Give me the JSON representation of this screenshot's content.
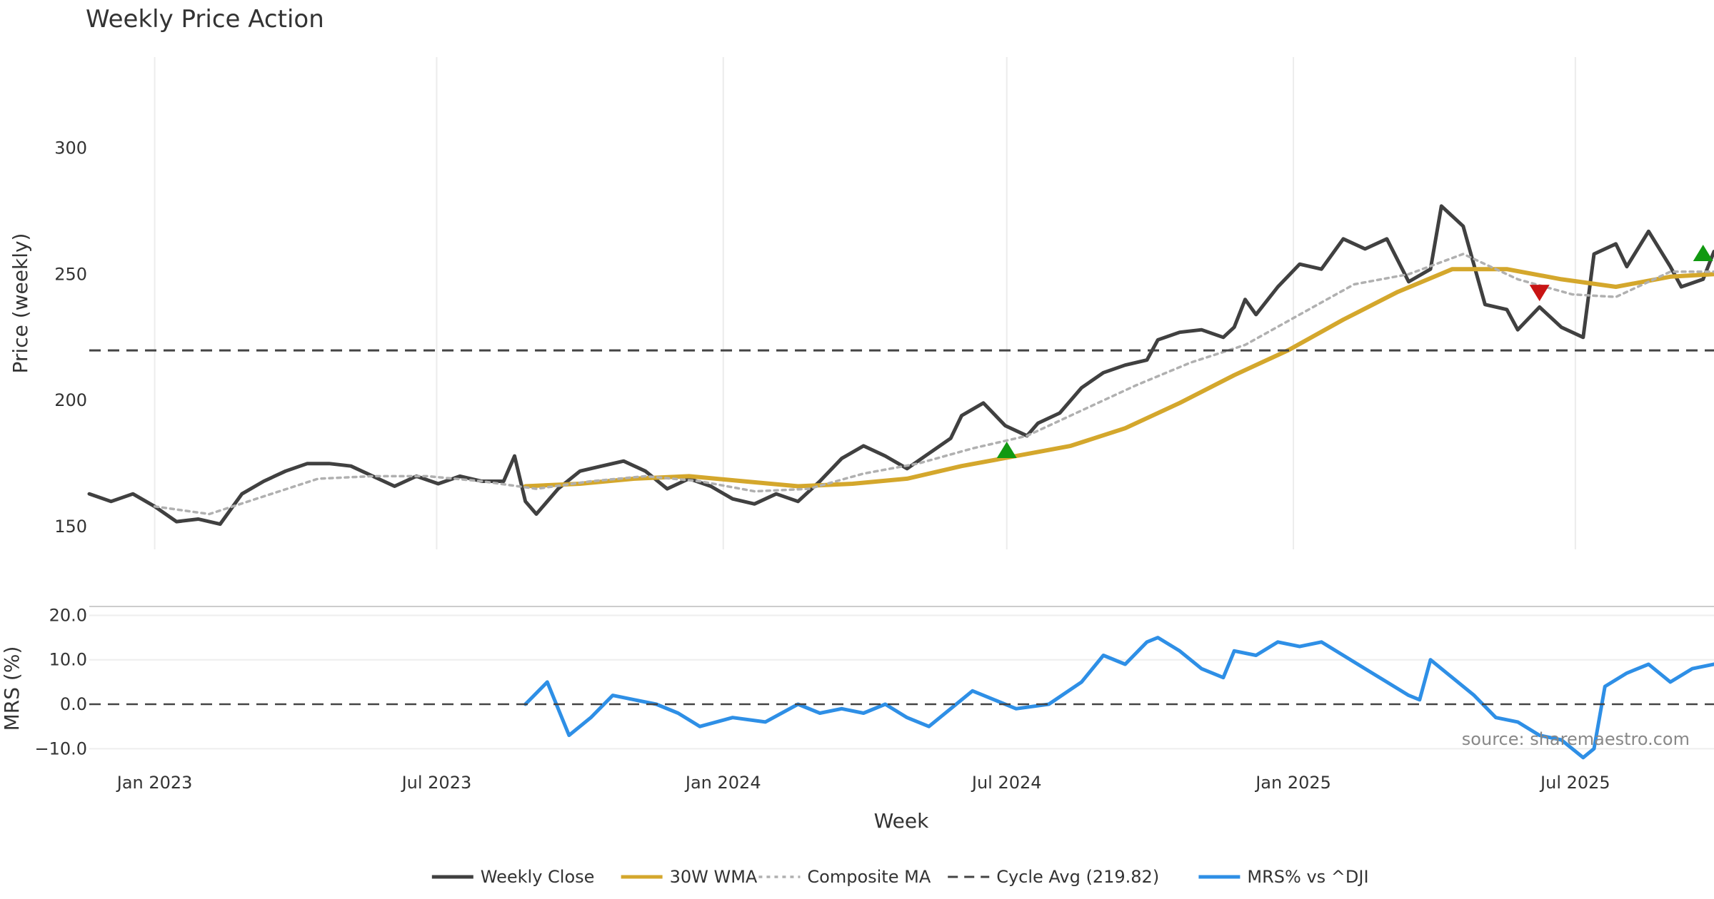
{
  "chart_data": [
    {
      "type": "line",
      "title": "Weekly Price Action",
      "ylabel": "Price (weekly)",
      "xlabel": "Week",
      "x_range": [
        "2022-11-20",
        "2025-09-28"
      ],
      "ylim": [
        141,
        336
      ],
      "yticks": [
        150,
        200,
        250,
        300
      ],
      "xticks": [
        {
          "date": "2023-01-01",
          "label": "Jan 2023"
        },
        {
          "date": "2023-07-01",
          "label": "Jul 2023"
        },
        {
          "date": "2024-01-01",
          "label": "Jan 2024"
        },
        {
          "date": "2024-07-01",
          "label": "Jul 2024"
        },
        {
          "date": "2025-01-01",
          "label": "Jan 2025"
        },
        {
          "date": "2025-07-01",
          "label": "Jul 2025"
        }
      ],
      "series": [
        {
          "name": "Weekly Close",
          "color": "#404040",
          "points": [
            [
              "2022-11-20",
              163
            ],
            [
              "2022-12-04",
              160
            ],
            [
              "2022-12-18",
              163
            ],
            [
              "2023-01-01",
              158
            ],
            [
              "2023-01-15",
              152
            ],
            [
              "2023-01-29",
              153
            ],
            [
              "2023-02-12",
              151
            ],
            [
              "2023-02-26",
              163
            ],
            [
              "2023-03-12",
              168
            ],
            [
              "2023-03-26",
              172
            ],
            [
              "2023-04-09",
              175
            ],
            [
              "2023-04-23",
              175
            ],
            [
              "2023-05-07",
              174
            ],
            [
              "2023-05-21",
              170
            ],
            [
              "2023-06-04",
              166
            ],
            [
              "2023-06-18",
              170
            ],
            [
              "2023-07-02",
              167
            ],
            [
              "2023-07-16",
              170
            ],
            [
              "2023-07-30",
              168
            ],
            [
              "2023-08-13",
              168
            ],
            [
              "2023-08-20",
              178
            ],
            [
              "2023-08-27",
              160
            ],
            [
              "2023-09-03",
              155
            ],
            [
              "2023-09-17",
              165
            ],
            [
              "2023-10-01",
              172
            ],
            [
              "2023-10-15",
              174
            ],
            [
              "2023-10-29",
              176
            ],
            [
              "2023-11-12",
              172
            ],
            [
              "2023-11-26",
              165
            ],
            [
              "2023-12-10",
              169
            ],
            [
              "2023-12-24",
              166
            ],
            [
              "2024-01-07",
              161
            ],
            [
              "2024-01-21",
              159
            ],
            [
              "2024-02-04",
              163
            ],
            [
              "2024-02-18",
              160
            ],
            [
              "2024-03-03",
              168
            ],
            [
              "2024-03-17",
              177
            ],
            [
              "2024-03-31",
              182
            ],
            [
              "2024-04-14",
              178
            ],
            [
              "2024-04-28",
              173
            ],
            [
              "2024-05-12",
              179
            ],
            [
              "2024-05-26",
              185
            ],
            [
              "2024-06-02",
              194
            ],
            [
              "2024-06-16",
              199
            ],
            [
              "2024-06-30",
              190
            ],
            [
              "2024-07-14",
              186
            ],
            [
              "2024-07-21",
              191
            ],
            [
              "2024-08-04",
              195
            ],
            [
              "2024-08-18",
              205
            ],
            [
              "2024-09-01",
              211
            ],
            [
              "2024-09-15",
              214
            ],
            [
              "2024-09-29",
              216
            ],
            [
              "2024-10-06",
              224
            ],
            [
              "2024-10-20",
              227
            ],
            [
              "2024-11-03",
              228
            ],
            [
              "2024-11-17",
              225
            ],
            [
              "2024-11-24",
              229
            ],
            [
              "2024-12-01",
              240
            ],
            [
              "2024-12-08",
              234
            ],
            [
              "2024-12-22",
              245
            ],
            [
              "2025-01-05",
              254
            ],
            [
              "2025-01-19",
              252
            ],
            [
              "2025-02-02",
              264
            ],
            [
              "2025-02-16",
              260
            ],
            [
              "2025-03-02",
              264
            ],
            [
              "2025-03-16",
              247
            ],
            [
              "2025-03-30",
              252
            ],
            [
              "2025-04-06",
              277
            ],
            [
              "2025-04-20",
              269
            ],
            [
              "2025-05-04",
              238
            ],
            [
              "2025-05-18",
              236
            ],
            [
              "2025-05-25",
              228
            ],
            [
              "2025-06-08",
              237
            ],
            [
              "2025-06-22",
              229
            ],
            [
              "2025-07-06",
              225
            ],
            [
              "2025-07-13",
              258
            ],
            [
              "2025-07-27",
              262
            ],
            [
              "2025-08-03",
              253
            ],
            [
              "2025-08-17",
              267
            ],
            [
              "2025-08-31",
              253
            ],
            [
              "2025-09-07",
              245
            ],
            [
              "2025-09-21",
              248
            ],
            [
              "2025-09-28",
              259
            ]
          ]
        },
        {
          "name": "30W WMA",
          "color": "#d4a72c",
          "points": [
            [
              "2023-08-27",
              166
            ],
            [
              "2023-10-01",
              167
            ],
            [
              "2023-11-05",
              169
            ],
            [
              "2023-12-10",
              170
            ],
            [
              "2024-01-14",
              168
            ],
            [
              "2024-02-18",
              166
            ],
            [
              "2024-03-24",
              167
            ],
            [
              "2024-04-28",
              169
            ],
            [
              "2024-06-02",
              174
            ],
            [
              "2024-07-07",
              178
            ],
            [
              "2024-08-11",
              182
            ],
            [
              "2024-09-15",
              189
            ],
            [
              "2024-10-20",
              199
            ],
            [
              "2024-11-24",
              210
            ],
            [
              "2024-12-29",
              220
            ],
            [
              "2025-02-02",
              232
            ],
            [
              "2025-03-09",
              243
            ],
            [
              "2025-04-13",
              252
            ],
            [
              "2025-05-18",
              252
            ],
            [
              "2025-06-22",
              248
            ],
            [
              "2025-07-27",
              245
            ],
            [
              "2025-08-31",
              249
            ],
            [
              "2025-09-28",
              250
            ]
          ]
        },
        {
          "name": "Composite MA",
          "color": "#b0b0b0",
          "points": [
            [
              "2023-01-01",
              158
            ],
            [
              "2023-02-05",
              155
            ],
            [
              "2023-03-12",
              162
            ],
            [
              "2023-04-16",
              169
            ],
            [
              "2023-05-21",
              170
            ],
            [
              "2023-06-25",
              170
            ],
            [
              "2023-07-30",
              168
            ],
            [
              "2023-09-03",
              165
            ],
            [
              "2023-10-08",
              168
            ],
            [
              "2023-11-12",
              170
            ],
            [
              "2023-12-17",
              168
            ],
            [
              "2024-01-21",
              164
            ],
            [
              "2024-02-25",
              165
            ],
            [
              "2024-03-31",
              171
            ],
            [
              "2024-05-05",
              175
            ],
            [
              "2024-06-09",
              181
            ],
            [
              "2024-07-14",
              186
            ],
            [
              "2024-08-18",
              196
            ],
            [
              "2024-09-22",
              206
            ],
            [
              "2024-10-27",
              215
            ],
            [
              "2024-12-01",
              222
            ],
            [
              "2025-01-05",
              234
            ],
            [
              "2025-02-09",
              246
            ],
            [
              "2025-03-16",
              250
            ],
            [
              "2025-04-20",
              258
            ],
            [
              "2025-05-25",
              248
            ],
            [
              "2025-06-29",
              242
            ],
            [
              "2025-07-27",
              241
            ],
            [
              "2025-08-31",
              251
            ],
            [
              "2025-09-28",
              251
            ]
          ]
        },
        {
          "name": "Cycle Avg (219.82)",
          "color": "#444444",
          "constant": 219.82
        }
      ],
      "markers": [
        {
          "date": "2024-07-01",
          "value": 180,
          "direction": "up",
          "color": "#119911"
        },
        {
          "date": "2025-06-08",
          "value": 243,
          "direction": "down",
          "color": "#c81414"
        },
        {
          "date": "2025-09-21",
          "value": 258,
          "direction": "up",
          "color": "#119911"
        }
      ]
    },
    {
      "type": "line",
      "title": "",
      "ylabel": "MRS (%)",
      "xlabel": "",
      "x_range": [
        "2022-11-20",
        "2025-09-28"
      ],
      "ylim": [
        -13,
        22
      ],
      "yticks": [
        {
          "value": 20,
          "label": "20.0"
        },
        {
          "value": 10,
          "label": "10.0"
        },
        {
          "value": 0,
          "label": "0.0"
        },
        {
          "value": -10,
          "label": "−10.0"
        }
      ],
      "series": [
        {
          "name": "MRS% vs ^DJI",
          "color": "#2e8fe6",
          "points": [
            [
              "2023-08-27",
              0
            ],
            [
              "2023-09-10",
              5
            ],
            [
              "2023-09-24",
              -7
            ],
            [
              "2023-10-08",
              -3
            ],
            [
              "2023-10-22",
              2
            ],
            [
              "2023-11-05",
              1
            ],
            [
              "2023-11-19",
              0
            ],
            [
              "2023-12-03",
              -2
            ],
            [
              "2023-12-17",
              -5
            ],
            [
              "2024-01-07",
              -3
            ],
            [
              "2024-01-28",
              -4
            ],
            [
              "2024-02-18",
              0
            ],
            [
              "2024-03-03",
              -2
            ],
            [
              "2024-03-17",
              -1
            ],
            [
              "2024-03-31",
              -2
            ],
            [
              "2024-04-14",
              0
            ],
            [
              "2024-04-28",
              -3
            ],
            [
              "2024-05-12",
              -5
            ],
            [
              "2024-05-26",
              -1
            ],
            [
              "2024-06-09",
              3
            ],
            [
              "2024-06-23",
              1
            ],
            [
              "2024-07-07",
              -1
            ],
            [
              "2024-07-28",
              0
            ],
            [
              "2024-08-18",
              5
            ],
            [
              "2024-09-01",
              11
            ],
            [
              "2024-09-15",
              9
            ],
            [
              "2024-09-29",
              14
            ],
            [
              "2024-10-06",
              15
            ],
            [
              "2024-10-20",
              12
            ],
            [
              "2024-11-03",
              8
            ],
            [
              "2024-11-17",
              6
            ],
            [
              "2024-11-24",
              12
            ],
            [
              "2024-12-08",
              11
            ],
            [
              "2024-12-22",
              14
            ],
            [
              "2025-01-05",
              13
            ],
            [
              "2025-01-19",
              14
            ],
            [
              "2025-02-02",
              11
            ],
            [
              "2025-02-16",
              8
            ],
            [
              "2025-03-02",
              5
            ],
            [
              "2025-03-16",
              2
            ],
            [
              "2025-03-23",
              1
            ],
            [
              "2025-03-30",
              10
            ],
            [
              "2025-04-13",
              6
            ],
            [
              "2025-04-27",
              2
            ],
            [
              "2025-05-11",
              -3
            ],
            [
              "2025-05-25",
              -4
            ],
            [
              "2025-06-08",
              -7
            ],
            [
              "2025-06-22",
              -8
            ],
            [
              "2025-07-06",
              -12
            ],
            [
              "2025-07-13",
              -10
            ],
            [
              "2025-07-20",
              4
            ],
            [
              "2025-08-03",
              7
            ],
            [
              "2025-08-17",
              9
            ],
            [
              "2025-08-31",
              5
            ],
            [
              "2025-09-14",
              8
            ],
            [
              "2025-09-28",
              9
            ]
          ]
        },
        {
          "name": "Zero line",
          "color": "#444444",
          "constant": 0
        }
      ]
    }
  ],
  "legend": [
    {
      "label": "Weekly Close",
      "color": "#404040",
      "style": "solid"
    },
    {
      "label": "30W WMA",
      "color": "#d4a72c",
      "style": "solid"
    },
    {
      "label": "Composite MA",
      "color": "#b0b0b0",
      "style": "dotted"
    },
    {
      "label": "Cycle Avg (219.82)",
      "color": "#444444",
      "style": "dashed"
    },
    {
      "label": "MRS% vs ^DJI",
      "color": "#2e8fe6",
      "style": "solid"
    }
  ],
  "source": "source: sharemaestro.com"
}
